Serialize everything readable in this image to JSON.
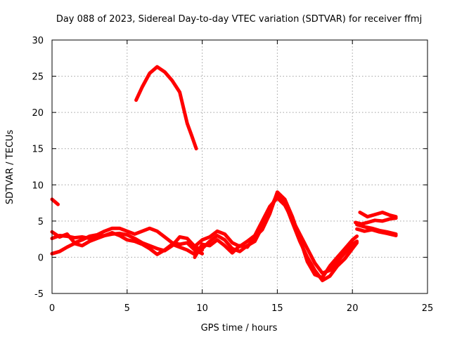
{
  "chart_data": {
    "type": "line",
    "title": "Day 088 of 2023, Sidereal Day-to-day VTEC variation (SDTVAR) for receiver ffmj",
    "xlabel": "GPS time / hours",
    "ylabel": "SDTVAR / TECUs",
    "xlim": [
      0,
      25
    ],
    "ylim": [
      -5,
      30
    ],
    "xticks": [
      0,
      5,
      10,
      15,
      20,
      25
    ],
    "yticks": [
      -5,
      0,
      5,
      10,
      15,
      20,
      25,
      30
    ],
    "grid": true,
    "color": "#ff0000",
    "series": [
      {
        "name": "segment-1",
        "points": [
          [
            0.0,
            8.0
          ],
          [
            0.4,
            7.3
          ]
        ]
      },
      {
        "name": "segment-2",
        "points": [
          [
            0.0,
            3.5
          ],
          [
            0.5,
            2.8
          ],
          [
            1.0,
            3.2
          ],
          [
            1.5,
            2.0
          ],
          [
            2.0,
            2.4
          ],
          [
            2.5,
            2.9
          ],
          [
            3.0,
            3.1
          ],
          [
            3.5,
            3.6
          ],
          [
            4.0,
            4.0
          ],
          [
            4.5,
            4.0
          ],
          [
            5.0,
            3.6
          ],
          [
            5.5,
            3.2
          ],
          [
            6.0,
            3.6
          ],
          [
            6.5,
            4.0
          ],
          [
            7.0,
            3.6
          ],
          [
            7.5,
            2.8
          ],
          [
            8.0,
            2.0
          ],
          [
            8.5,
            1.8
          ],
          [
            9.0,
            2.0
          ],
          [
            9.5,
            1.0
          ],
          [
            10.0,
            0.5
          ]
        ]
      },
      {
        "name": "segment-3",
        "points": [
          [
            0.0,
            2.6
          ],
          [
            0.5,
            3.0
          ],
          [
            1.0,
            2.9
          ],
          [
            1.5,
            2.7
          ],
          [
            2.0,
            2.8
          ],
          [
            2.5,
            2.6
          ],
          [
            3.0,
            2.8
          ],
          [
            3.5,
            3.0
          ],
          [
            4.0,
            3.2
          ],
          [
            4.5,
            3.3
          ],
          [
            5.0,
            3.1
          ],
          [
            5.5,
            2.6
          ],
          [
            6.0,
            2.0
          ],
          [
            6.5,
            1.6
          ],
          [
            7.0,
            1.2
          ],
          [
            7.5,
            0.9
          ],
          [
            8.0,
            1.6
          ],
          [
            8.5,
            2.8
          ],
          [
            9.0,
            2.6
          ],
          [
            9.5,
            1.5
          ],
          [
            10.0,
            1.0
          ]
        ]
      },
      {
        "name": "segment-4",
        "points": [
          [
            0.0,
            0.5
          ],
          [
            0.5,
            0.8
          ],
          [
            1.0,
            1.4
          ],
          [
            1.5,
            1.9
          ],
          [
            2.0,
            1.6
          ],
          [
            2.5,
            2.2
          ],
          [
            3.0,
            2.6
          ],
          [
            3.5,
            3.0
          ],
          [
            4.0,
            3.4
          ],
          [
            4.5,
            3.0
          ],
          [
            5.0,
            2.4
          ],
          [
            5.5,
            2.2
          ],
          [
            6.0,
            1.8
          ],
          [
            6.5,
            1.2
          ],
          [
            7.0,
            0.4
          ],
          [
            7.5,
            1.0
          ],
          [
            8.0,
            1.8
          ],
          [
            8.5,
            1.4
          ],
          [
            9.0,
            1.0
          ],
          [
            9.5,
            0.4
          ],
          [
            10.0,
            1.6
          ]
        ]
      },
      {
        "name": "segment-5",
        "points": [
          [
            5.6,
            21.7
          ],
          [
            6.0,
            23.5
          ],
          [
            6.5,
            25.4
          ],
          [
            7.0,
            26.3
          ],
          [
            7.5,
            25.6
          ],
          [
            8.0,
            24.4
          ],
          [
            8.5,
            22.8
          ],
          [
            9.0,
            18.5
          ],
          [
            9.3,
            16.8
          ],
          [
            9.6,
            15.0
          ]
        ]
      },
      {
        "name": "segment-6",
        "points": [
          [
            9.5,
            1.5
          ],
          [
            10.0,
            2.4
          ],
          [
            10.5,
            2.8
          ],
          [
            11.0,
            3.6
          ],
          [
            11.5,
            3.2
          ],
          [
            12.0,
            2.0
          ],
          [
            12.5,
            1.5
          ],
          [
            13.0,
            2.2
          ],
          [
            13.5,
            3.0
          ],
          [
            14.0,
            5.0
          ],
          [
            14.5,
            7.0
          ],
          [
            15.0,
            8.2
          ],
          [
            15.5,
            7.2
          ],
          [
            16.0,
            5.2
          ],
          [
            16.5,
            3.2
          ],
          [
            17.0,
            1.2
          ],
          [
            17.5,
            -0.8
          ],
          [
            18.0,
            -2.2
          ],
          [
            18.5,
            -1.8
          ],
          [
            19.0,
            -0.6
          ],
          [
            19.5,
            0.6
          ],
          [
            20.0,
            1.8
          ],
          [
            20.3,
            2.2
          ]
        ]
      },
      {
        "name": "segment-7",
        "points": [
          [
            9.5,
            0.6
          ],
          [
            10.0,
            1.2
          ],
          [
            10.5,
            2.2
          ],
          [
            11.0,
            3.0
          ],
          [
            11.5,
            2.4
          ],
          [
            12.0,
            1.2
          ],
          [
            12.5,
            0.8
          ],
          [
            13.0,
            1.6
          ],
          [
            13.5,
            2.2
          ],
          [
            14.0,
            4.2
          ],
          [
            14.5,
            6.5
          ],
          [
            15.0,
            8.8
          ],
          [
            15.5,
            7.5
          ],
          [
            16.0,
            4.8
          ],
          [
            16.5,
            2.2
          ],
          [
            17.0,
            0.0
          ],
          [
            17.5,
            -1.8
          ],
          [
            18.0,
            -3.2
          ],
          [
            18.5,
            -2.6
          ],
          [
            19.0,
            -1.2
          ],
          [
            19.5,
            -0.2
          ],
          [
            20.0,
            1.2
          ],
          [
            20.3,
            2.0
          ]
        ]
      },
      {
        "name": "segment-8",
        "points": [
          [
            9.5,
            0.0
          ],
          [
            10.0,
            1.8
          ],
          [
            10.5,
            1.6
          ],
          [
            11.0,
            2.4
          ],
          [
            11.5,
            1.6
          ],
          [
            12.0,
            0.6
          ],
          [
            12.5,
            1.6
          ],
          [
            13.0,
            1.4
          ],
          [
            13.5,
            2.8
          ],
          [
            14.0,
            3.8
          ],
          [
            14.5,
            6.0
          ],
          [
            15.0,
            9.0
          ],
          [
            15.5,
            8.0
          ],
          [
            16.0,
            5.6
          ],
          [
            16.5,
            2.6
          ],
          [
            17.0,
            -0.6
          ],
          [
            17.5,
            -2.4
          ],
          [
            18.0,
            -2.8
          ],
          [
            18.5,
            -1.2
          ],
          [
            19.0,
            0.0
          ],
          [
            19.5,
            1.2
          ],
          [
            20.0,
            2.4
          ],
          [
            20.3,
            2.9
          ]
        ]
      },
      {
        "name": "segment-9",
        "points": [
          [
            20.5,
            6.2
          ],
          [
            21.0,
            5.6
          ],
          [
            21.5,
            5.9
          ],
          [
            22.0,
            6.2
          ],
          [
            22.5,
            5.8
          ],
          [
            22.9,
            5.6
          ]
        ]
      },
      {
        "name": "segment-10",
        "points": [
          [
            20.2,
            4.8
          ],
          [
            20.6,
            4.6
          ],
          [
            21.0,
            4.8
          ],
          [
            21.5,
            5.1
          ],
          [
            22.0,
            5.0
          ],
          [
            22.5,
            5.3
          ],
          [
            22.9,
            5.4
          ]
        ]
      },
      {
        "name": "segment-11",
        "points": [
          [
            20.3,
            3.9
          ],
          [
            20.8,
            3.6
          ],
          [
            21.3,
            3.8
          ],
          [
            21.8,
            3.5
          ],
          [
            22.3,
            3.3
          ],
          [
            22.9,
            3.0
          ]
        ]
      },
      {
        "name": "segment-12",
        "points": [
          [
            20.3,
            4.5
          ],
          [
            20.8,
            4.2
          ],
          [
            21.3,
            4.0
          ],
          [
            21.8,
            3.7
          ],
          [
            22.3,
            3.5
          ],
          [
            22.9,
            3.2
          ]
        ]
      }
    ]
  }
}
